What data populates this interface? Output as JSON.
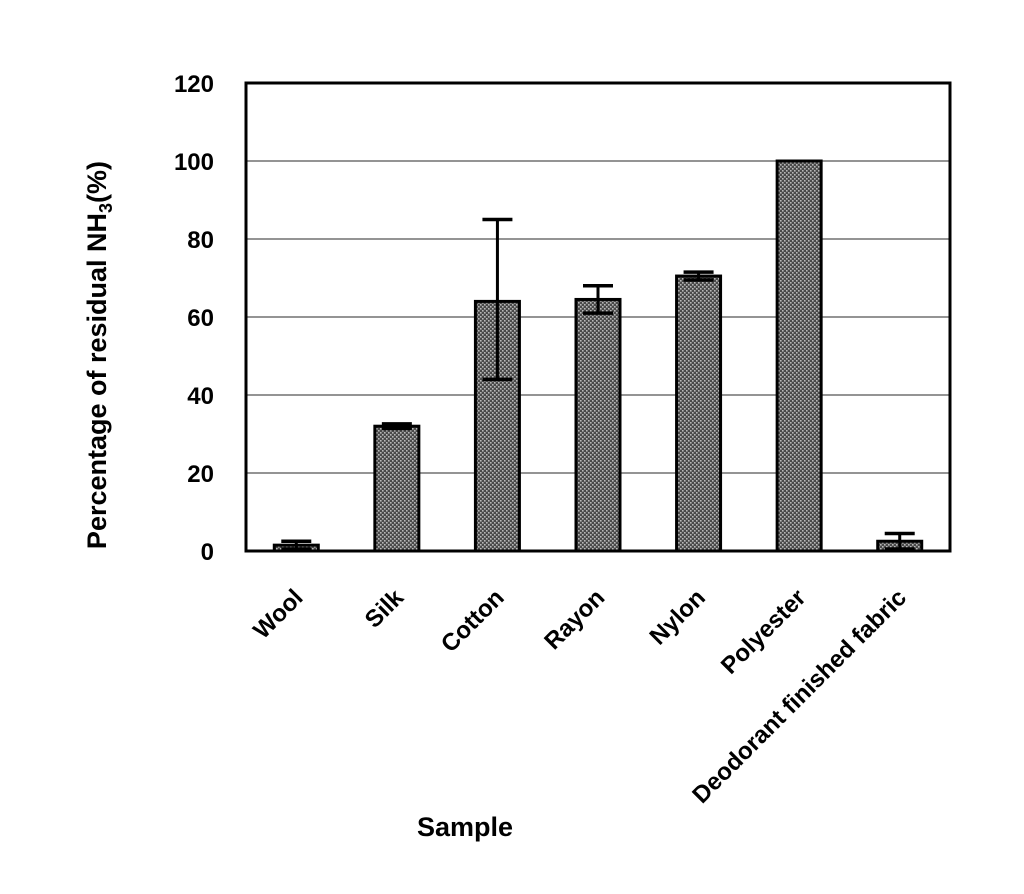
{
  "chart_data": {
    "type": "bar",
    "categories": [
      "Wool",
      "Silk",
      "Cotton",
      "Rayon",
      "Nylon",
      "Polyester",
      "Deodorant finished fabric"
    ],
    "values": [
      1.5,
      32,
      64,
      64.5,
      70.5,
      100,
      2.5
    ],
    "error_upper": [
      1.0,
      0.6,
      21,
      3.5,
      1.0,
      0,
      2.0
    ],
    "error_lower": [
      1.0,
      0.6,
      20,
      3.5,
      1.0,
      0,
      2.0
    ],
    "xlabel": "Sample",
    "ylabel_main": "Percentage of residual NH",
    "ylabel_sub": "3",
    "ylabel_tail": "(%)",
    "ylim": [
      0,
      120
    ],
    "yticks": [
      "0",
      "20",
      "40",
      "60",
      "80",
      "100",
      "120"
    ],
    "grid": true,
    "bar_color": "#3a3a3a",
    "bar_edge_color": "#000000"
  }
}
